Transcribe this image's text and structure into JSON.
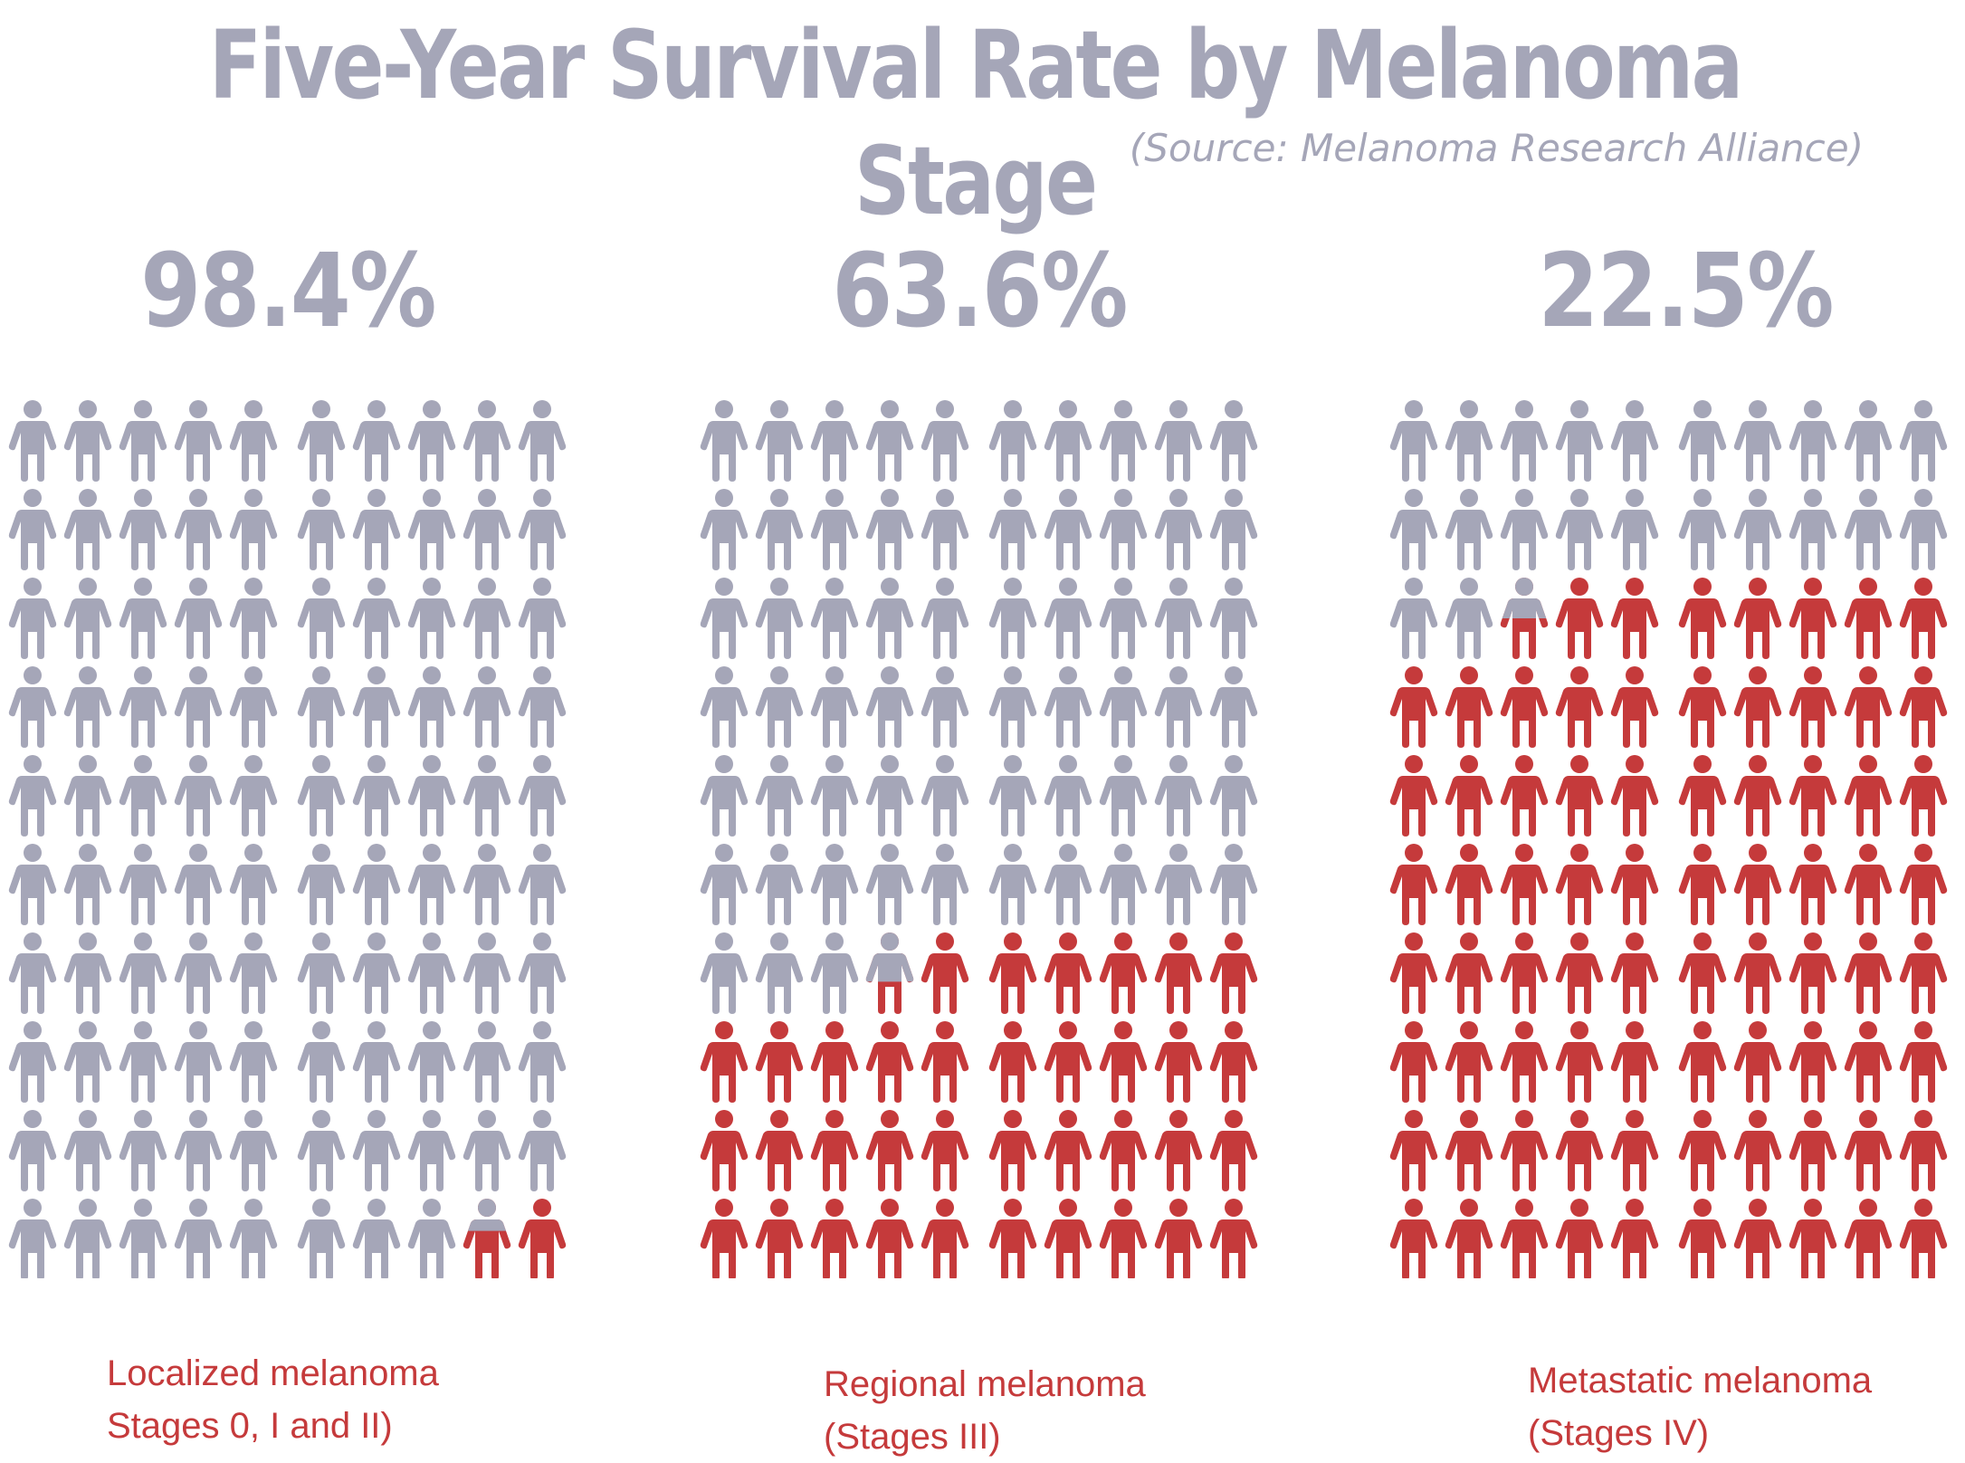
{
  "title": "Five-Year Survival Rate by Melanoma Stage",
  "source": "(Source: Melanoma Research Alliance)",
  "colors": {
    "survived": "#a5a6b8",
    "not_survived": "#c53a3b",
    "title": "#a5a6b8",
    "label": "#c53a3b"
  },
  "icon": "person-icon",
  "chart_data": {
    "type": "pictogram",
    "title": "Five-Year Survival Rate by Melanoma Stage",
    "subtitle": "(Source: Melanoma Research Alliance)",
    "grid": {
      "rows": 10,
      "cols": 10,
      "total": 100
    },
    "categories": [
      "Localized melanoma",
      "Regional melanoma",
      "Metastatic melanoma"
    ],
    "panels": [
      {
        "percent_label": "98.4%",
        "value": 98.4,
        "label_line1": "Localized melanoma",
        "label_line2": "Stages 0, I and II)"
      },
      {
        "percent_label": "63.6%",
        "value": 63.6,
        "label_line1": "Regional melanoma",
        "label_line2": "(Stages III)"
      },
      {
        "percent_label": "22.5%",
        "value": 22.5,
        "label_line1": "Metastatic melanoma",
        "label_line2": "(Stages IV)"
      }
    ]
  }
}
